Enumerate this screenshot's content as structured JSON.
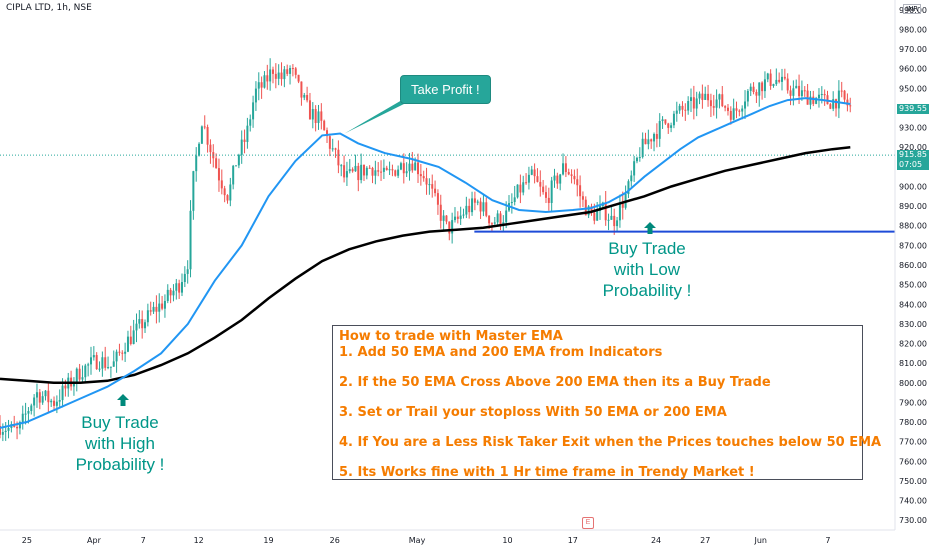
{
  "header": {
    "title": "CIPLA LTD, 1h, NSE",
    "currency": "INR"
  },
  "price_tags": {
    "last": {
      "value": "939.55",
      "color": "#26a69a"
    },
    "current": {
      "value": "915.85",
      "time": "07:05",
      "color": "#26a69a"
    }
  },
  "callout": {
    "text": "Take Profit !"
  },
  "annotations": {
    "buy_high": [
      "Buy Trade",
      "with High",
      "Probability !"
    ],
    "buy_low": [
      "Buy Trade",
      "with Low",
      "Probability !"
    ]
  },
  "info_box": {
    "lines": [
      "How to trade with Master EMA",
      "1. Add 50 EMA and 200 EMA from Indicators",
      "2. If the 50 EMA Cross Above 200 EMA then its a Buy Trade",
      "3. Set or Trail your stoploss With 50 EMA or 200 EMA",
      "4. If You are a Less Risk Taker Exit when the Prices touches below 50 EMA",
      "5. Its Works fine with 1 Hr time frame in Trendy Market !"
    ]
  },
  "earnings_badge": "E",
  "colors": {
    "up": "#26a69a",
    "down": "#ef5350",
    "ema50": "#2196f3",
    "ema200": "#000000",
    "support": "#1e4bd8"
  },
  "chart_data": {
    "type": "line",
    "ylim": [
      725,
      995
    ],
    "y_ticks": [
      730,
      740,
      750,
      760,
      770,
      780,
      790,
      800,
      810,
      820,
      830,
      840,
      850,
      860,
      870,
      880,
      890,
      900,
      910,
      920,
      930,
      940,
      950,
      960,
      970,
      980,
      990
    ],
    "x_labels": [
      {
        "label": "25",
        "t": 0.03
      },
      {
        "label": "Apr",
        "t": 0.105
      },
      {
        "label": "7",
        "t": 0.16
      },
      {
        "label": "12",
        "t": 0.222
      },
      {
        "label": "19",
        "t": 0.3
      },
      {
        "label": "26",
        "t": 0.374
      },
      {
        "label": "May",
        "t": 0.466
      },
      {
        "label": "10",
        "t": 0.567
      },
      {
        "label": "17",
        "t": 0.64
      },
      {
        "label": "24",
        "t": 0.733
      },
      {
        "label": "27",
        "t": 0.788
      },
      {
        "label": "Jun",
        "t": 0.85
      },
      {
        "label": "7",
        "t": 0.925
      }
    ],
    "price_path": [
      [
        0.0,
        778
      ],
      [
        0.02,
        775
      ],
      [
        0.04,
        795
      ],
      [
        0.06,
        790
      ],
      [
        0.075,
        798
      ],
      [
        0.09,
        806
      ],
      [
        0.11,
        812
      ],
      [
        0.125,
        808
      ],
      [
        0.14,
        820
      ],
      [
        0.155,
        828
      ],
      [
        0.17,
        836
      ],
      [
        0.185,
        842
      ],
      [
        0.2,
        850
      ],
      [
        0.21,
        862
      ],
      [
        0.215,
        900
      ],
      [
        0.225,
        935
      ],
      [
        0.235,
        920
      ],
      [
        0.245,
        905
      ],
      [
        0.255,
        895
      ],
      [
        0.265,
        915
      ],
      [
        0.275,
        925
      ],
      [
        0.285,
        948
      ],
      [
        0.295,
        952
      ],
      [
        0.305,
        960
      ],
      [
        0.315,
        955
      ],
      [
        0.325,
        960
      ],
      [
        0.335,
        948
      ],
      [
        0.345,
        938
      ],
      [
        0.355,
        935
      ],
      [
        0.365,
        925
      ],
      [
        0.375,
        915
      ],
      [
        0.385,
        904
      ],
      [
        0.4,
        907
      ],
      [
        0.415,
        910
      ],
      [
        0.43,
        905
      ],
      [
        0.445,
        910
      ],
      [
        0.46,
        913
      ],
      [
        0.475,
        905
      ],
      [
        0.49,
        888
      ],
      [
        0.5,
        878
      ],
      [
        0.51,
        882
      ],
      [
        0.52,
        888
      ],
      [
        0.535,
        892
      ],
      [
        0.55,
        882
      ],
      [
        0.565,
        885
      ],
      [
        0.58,
        898
      ],
      [
        0.595,
        905
      ],
      [
        0.61,
        893
      ],
      [
        0.62,
        902
      ],
      [
        0.63,
        910
      ],
      [
        0.64,
        906
      ],
      [
        0.65,
        893
      ],
      [
        0.66,
        885
      ],
      [
        0.675,
        888
      ],
      [
        0.685,
        882
      ],
      [
        0.69,
        887
      ],
      [
        0.7,
        896
      ],
      [
        0.715,
        918
      ],
      [
        0.73,
        927
      ],
      [
        0.745,
        933
      ],
      [
        0.76,
        938
      ],
      [
        0.775,
        942
      ],
      [
        0.79,
        946
      ],
      [
        0.805,
        943
      ],
      [
        0.82,
        937
      ],
      [
        0.835,
        948
      ],
      [
        0.85,
        952
      ],
      [
        0.865,
        955
      ],
      [
        0.88,
        950
      ],
      [
        0.895,
        947
      ],
      [
        0.91,
        945
      ],
      [
        0.925,
        943
      ],
      [
        0.94,
        945
      ],
      [
        0.95,
        940
      ]
    ],
    "series": [
      {
        "values": [
          [
            0.0,
            777
          ],
          [
            0.03,
            780
          ],
          [
            0.06,
            786
          ],
          [
            0.09,
            792
          ],
          [
            0.12,
            798
          ],
          [
            0.15,
            806
          ],
          [
            0.18,
            815
          ],
          [
            0.21,
            830
          ],
          [
            0.24,
            852
          ],
          [
            0.27,
            870
          ],
          [
            0.3,
            895
          ],
          [
            0.33,
            913
          ],
          [
            0.36,
            926
          ],
          [
            0.38,
            927
          ],
          [
            0.4,
            922
          ],
          [
            0.43,
            917
          ],
          [
            0.46,
            914
          ],
          [
            0.49,
            910
          ],
          [
            0.52,
            902
          ],
          [
            0.55,
            893
          ],
          [
            0.58,
            888
          ],
          [
            0.61,
            887
          ],
          [
            0.64,
            888
          ],
          [
            0.66,
            889
          ],
          [
            0.68,
            892
          ],
          [
            0.7,
            897
          ],
          [
            0.72,
            905
          ],
          [
            0.74,
            912
          ],
          [
            0.76,
            919
          ],
          [
            0.78,
            925
          ],
          [
            0.8,
            929
          ],
          [
            0.82,
            933
          ],
          [
            0.84,
            937
          ],
          [
            0.86,
            941
          ],
          [
            0.88,
            944
          ],
          [
            0.9,
            945
          ],
          [
            0.92,
            944
          ],
          [
            0.95,
            942
          ]
        ]
      },
      {
        "values": [
          [
            0.0,
            802
          ],
          [
            0.03,
            801
          ],
          [
            0.06,
            800
          ],
          [
            0.09,
            800
          ],
          [
            0.12,
            801
          ],
          [
            0.15,
            804
          ],
          [
            0.18,
            809
          ],
          [
            0.21,
            815
          ],
          [
            0.24,
            823
          ],
          [
            0.27,
            832
          ],
          [
            0.3,
            843
          ],
          [
            0.33,
            853
          ],
          [
            0.36,
            862
          ],
          [
            0.39,
            868
          ],
          [
            0.42,
            872
          ],
          [
            0.45,
            875
          ],
          [
            0.48,
            877
          ],
          [
            0.51,
            878
          ],
          [
            0.54,
            879
          ],
          [
            0.57,
            881
          ],
          [
            0.6,
            883
          ],
          [
            0.63,
            885
          ],
          [
            0.66,
            887
          ],
          [
            0.69,
            891
          ],
          [
            0.72,
            895
          ],
          [
            0.75,
            900
          ],
          [
            0.78,
            904
          ],
          [
            0.81,
            908
          ],
          [
            0.84,
            911
          ],
          [
            0.87,
            914
          ],
          [
            0.9,
            917
          ],
          [
            0.93,
            919
          ],
          [
            0.95,
            920
          ]
        ]
      }
    ],
    "support_level": {
      "value": 877,
      "x_start": 0.53,
      "x_end": 1.0
    },
    "dotted_level": 916
  }
}
